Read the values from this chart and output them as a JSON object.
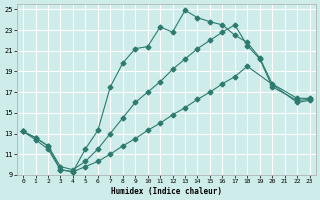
{
  "xlabel": "Humidex (Indice chaleur)",
  "background_color": "#ceecea",
  "grid_color": "#ffffff",
  "line_color": "#2d7b6e",
  "xlim": [
    -0.5,
    23.5
  ],
  "ylim": [
    9,
    25.5
  ],
  "xticks": [
    0,
    1,
    2,
    3,
    4,
    5,
    6,
    7,
    8,
    9,
    10,
    11,
    12,
    13,
    14,
    15,
    16,
    17,
    18,
    19,
    20,
    21,
    22,
    23
  ],
  "yticks": [
    9,
    11,
    13,
    15,
    17,
    19,
    21,
    23,
    25
  ],
  "series": [
    {
      "x": [
        0,
        1,
        2,
        3,
        4,
        5,
        6,
        7,
        8,
        9,
        10,
        11,
        12,
        13,
        14,
        15,
        16,
        17,
        18,
        19,
        20,
        22,
        23
      ],
      "y": [
        13.2,
        12.6,
        11.8,
        9.5,
        9.3,
        11.5,
        13.3,
        17.5,
        19.8,
        21.2,
        21.4,
        23.3,
        22.8,
        24.9,
        24.2,
        23.8,
        23.5,
        22.5,
        21.8,
        20.3,
        17.8,
        16.4,
        16.4
      ]
    },
    {
      "x": [
        0,
        1,
        2,
        3,
        4,
        5,
        6,
        7,
        8,
        9,
        10,
        11,
        12,
        13,
        14,
        15,
        16,
        17,
        18,
        19,
        20,
        22,
        23
      ],
      "y": [
        13.2,
        12.6,
        11.8,
        9.8,
        9.5,
        10.3,
        11.5,
        13.0,
        14.5,
        16.0,
        17.0,
        18.0,
        19.2,
        20.2,
        21.2,
        22.0,
        22.8,
        23.5,
        21.5,
        20.2,
        17.5,
        16.2,
        16.3
      ]
    },
    {
      "x": [
        0,
        1,
        2,
        3,
        4,
        5,
        6,
        7,
        8,
        9,
        10,
        11,
        12,
        13,
        14,
        15,
        16,
        17,
        18,
        22,
        23
      ],
      "y": [
        13.2,
        12.4,
        11.5,
        9.5,
        9.3,
        9.8,
        10.3,
        11.0,
        11.8,
        12.5,
        13.3,
        14.0,
        14.8,
        15.5,
        16.3,
        17.0,
        17.8,
        18.5,
        19.5,
        16.0,
        16.2
      ]
    }
  ]
}
